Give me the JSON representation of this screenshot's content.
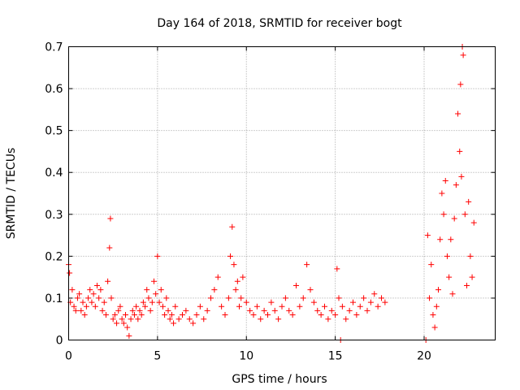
{
  "chart_data": {
    "type": "scatter",
    "title": "Day 164 of 2018, SRMTID for receiver bogt",
    "xlabel": "GPS time / hours",
    "ylabel": "SRMTID / TECUs",
    "xlim": [
      0,
      24
    ],
    "ylim": [
      0,
      0.7
    ],
    "xticks": [
      0,
      5,
      10,
      15,
      20
    ],
    "yticks": [
      0,
      0.1,
      0.2,
      0.3,
      0.4,
      0.5,
      0.6,
      0.7
    ],
    "xtick_labels": [
      "0",
      "5",
      "10",
      "15",
      "20"
    ],
    "ytick_labels": [
      "0",
      "0.1",
      "0.2",
      "0.3",
      "0.4",
      "0.5",
      "0.6",
      "0.7"
    ],
    "grid": true,
    "marker": "+",
    "color": "#ff0000",
    "series": [
      {
        "name": "SRMTID",
        "x": [
          0.0,
          0.05,
          0.1,
          0.2,
          0.3,
          0.4,
          0.5,
          0.6,
          0.7,
          0.8,
          0.9,
          1.0,
          1.1,
          1.2,
          1.3,
          1.4,
          1.5,
          1.6,
          1.7,
          1.8,
          1.9,
          2.0,
          2.1,
          2.2,
          2.3,
          2.35,
          2.4,
          2.5,
          2.6,
          2.7,
          2.8,
          2.9,
          3.0,
          3.1,
          3.2,
          3.3,
          3.4,
          3.5,
          3.6,
          3.7,
          3.8,
          3.9,
          4.0,
          4.1,
          4.2,
          4.3,
          4.4,
          4.5,
          4.6,
          4.7,
          4.8,
          4.9,
          5.0,
          5.1,
          5.2,
          5.3,
          5.4,
          5.5,
          5.6,
          5.7,
          5.8,
          5.9,
          6.0,
          6.2,
          6.4,
          6.6,
          6.8,
          7.0,
          7.2,
          7.4,
          7.6,
          7.8,
          8.0,
          8.2,
          8.4,
          8.6,
          8.8,
          9.0,
          9.1,
          9.2,
          9.3,
          9.4,
          9.5,
          9.6,
          9.7,
          9.8,
          10.0,
          10.2,
          10.4,
          10.6,
          10.8,
          11.0,
          11.2,
          11.4,
          11.6,
          11.8,
          12.0,
          12.2,
          12.4,
          12.6,
          12.8,
          13.0,
          13.2,
          13.4,
          13.6,
          13.8,
          14.0,
          14.2,
          14.4,
          14.6,
          14.8,
          15.0,
          15.1,
          15.2,
          15.3,
          15.4,
          15.6,
          15.8,
          16.0,
          16.2,
          16.4,
          16.6,
          16.8,
          17.0,
          17.2,
          17.4,
          17.6,
          17.8,
          20.1,
          20.2,
          20.3,
          20.4,
          20.5,
          20.6,
          20.7,
          20.8,
          20.9,
          21.0,
          21.1,
          21.2,
          21.3,
          21.4,
          21.5,
          21.6,
          21.7,
          21.8,
          21.9,
          22.0,
          22.05,
          22.1,
          22.15,
          22.2,
          22.3,
          22.4,
          22.5,
          22.6,
          22.7,
          22.8
        ],
        "y": [
          0.18,
          0.16,
          0.09,
          0.12,
          0.08,
          0.07,
          0.1,
          0.11,
          0.07,
          0.09,
          0.06,
          0.08,
          0.1,
          0.12,
          0.09,
          0.11,
          0.08,
          0.13,
          0.1,
          0.12,
          0.07,
          0.09,
          0.06,
          0.14,
          0.22,
          0.29,
          0.1,
          0.05,
          0.06,
          0.04,
          0.07,
          0.08,
          0.05,
          0.04,
          0.06,
          0.03,
          0.01,
          0.05,
          0.07,
          0.06,
          0.08,
          0.05,
          0.07,
          0.06,
          0.09,
          0.08,
          0.12,
          0.1,
          0.07,
          0.09,
          0.14,
          0.11,
          0.2,
          0.09,
          0.12,
          0.08,
          0.06,
          0.1,
          0.07,
          0.05,
          0.06,
          0.04,
          0.08,
          0.05,
          0.06,
          0.07,
          0.05,
          0.04,
          0.06,
          0.08,
          0.05,
          0.07,
          0.1,
          0.12,
          0.15,
          0.08,
          0.06,
          0.1,
          0.2,
          0.27,
          0.18,
          0.12,
          0.14,
          0.08,
          0.1,
          0.15,
          0.09,
          0.07,
          0.06,
          0.08,
          0.05,
          0.07,
          0.06,
          0.09,
          0.07,
          0.05,
          0.08,
          0.1,
          0.07,
          0.06,
          0.13,
          0.08,
          0.1,
          0.18,
          0.12,
          0.09,
          0.07,
          0.06,
          0.08,
          0.05,
          0.07,
          0.06,
          0.17,
          0.1,
          0.0,
          0.08,
          0.05,
          0.07,
          0.09,
          0.06,
          0.08,
          0.1,
          0.07,
          0.09,
          0.11,
          0.08,
          0.1,
          0.09,
          0.0,
          0.25,
          0.1,
          0.18,
          0.06,
          0.03,
          0.08,
          0.12,
          0.24,
          0.35,
          0.3,
          0.38,
          0.2,
          0.15,
          0.24,
          0.11,
          0.29,
          0.37,
          0.54,
          0.45,
          0.61,
          0.39,
          0.7,
          0.68,
          0.3,
          0.13,
          0.33,
          0.2,
          0.15,
          0.28
        ]
      }
    ]
  }
}
